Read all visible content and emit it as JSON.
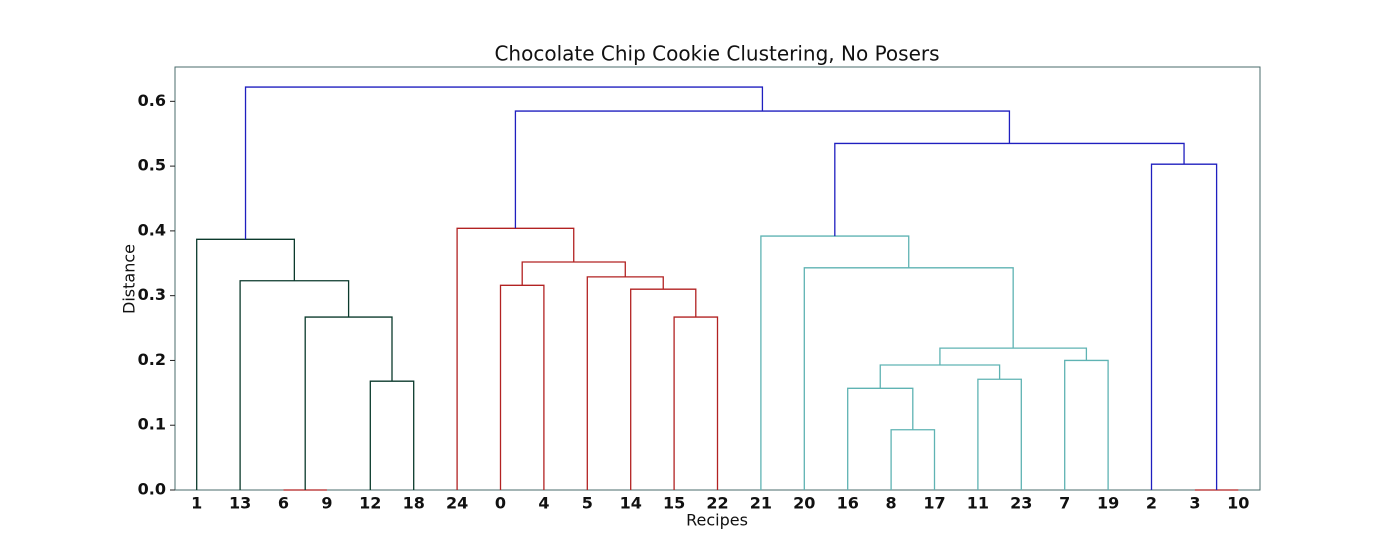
{
  "chart_data": {
    "type": "dendrogram",
    "title": "Chocolate Chip Cookie Clustering, No Posers",
    "xlabel": "Recipes",
    "ylabel": "Distance",
    "categories": [
      "1",
      "13",
      "6",
      "9",
      "12",
      "18",
      "24",
      "0",
      "4",
      "5",
      "14",
      "15",
      "22",
      "21",
      "20",
      "16",
      "8",
      "17",
      "11",
      "23",
      "7",
      "19",
      "2",
      "3",
      "10"
    ],
    "links": [
      {
        "children": [
          4,
          5
        ],
        "height": 0.168,
        "color": "#0b3a2c"
      },
      {
        "children": [
          2,
          3
        ],
        "height": 0.0,
        "color": "#b22222"
      },
      {
        "children": [
          26,
          25
        ],
        "height": 0.267,
        "color": "#0b3a2c"
      },
      {
        "children": [
          1,
          27
        ],
        "height": 0.323,
        "color": "#0b3a2c"
      },
      {
        "children": [
          0,
          28
        ],
        "height": 0.387,
        "color": "#0b3a2c"
      },
      {
        "children": [
          7,
          8
        ],
        "height": 0.316,
        "color": "#b22222"
      },
      {
        "children": [
          11,
          12
        ],
        "height": 0.267,
        "color": "#b22222"
      },
      {
        "children": [
          10,
          31
        ],
        "height": 0.31,
        "color": "#b22222"
      },
      {
        "children": [
          9,
          32
        ],
        "height": 0.329,
        "color": "#b22222"
      },
      {
        "children": [
          30,
          33
        ],
        "height": 0.352,
        "color": "#b22222"
      },
      {
        "children": [
          6,
          34
        ],
        "height": 0.404,
        "color": "#b22222"
      },
      {
        "children": [
          16,
          17
        ],
        "height": 0.093,
        "color": "#5fb3b3"
      },
      {
        "children": [
          15,
          36
        ],
        "height": 0.157,
        "color": "#5fb3b3"
      },
      {
        "children": [
          18,
          19
        ],
        "height": 0.171,
        "color": "#5fb3b3"
      },
      {
        "children": [
          37,
          38
        ],
        "height": 0.193,
        "color": "#5fb3b3"
      },
      {
        "children": [
          20,
          21
        ],
        "height": 0.2,
        "color": "#5fb3b3"
      },
      {
        "children": [
          39,
          40
        ],
        "height": 0.219,
        "color": "#5fb3b3"
      },
      {
        "children": [
          14,
          41
        ],
        "height": 0.343,
        "color": "#5fb3b3"
      },
      {
        "children": [
          13,
          42
        ],
        "height": 0.392,
        "color": "#5fb3b3"
      },
      {
        "children": [
          23,
          24
        ],
        "height": 0.0,
        "color": "#b22222"
      },
      {
        "children": [
          22,
          44
        ],
        "height": 0.503,
        "color": "#1f1fbf"
      },
      {
        "children": [
          43,
          45
        ],
        "height": 0.535,
        "color": "#1f1fbf"
      },
      {
        "children": [
          35,
          46
        ],
        "height": 0.585,
        "color": "#1f1fbf"
      },
      {
        "children": [
          29,
          47
        ],
        "height": 0.622,
        "color": "#1f1fbf"
      }
    ],
    "ylim": [
      0,
      0.653
    ],
    "yticks": [
      {
        "value": 0,
        "label": "0.0"
      },
      0.1,
      0.2,
      0.3,
      0.4,
      0.5,
      0.6
    ]
  }
}
